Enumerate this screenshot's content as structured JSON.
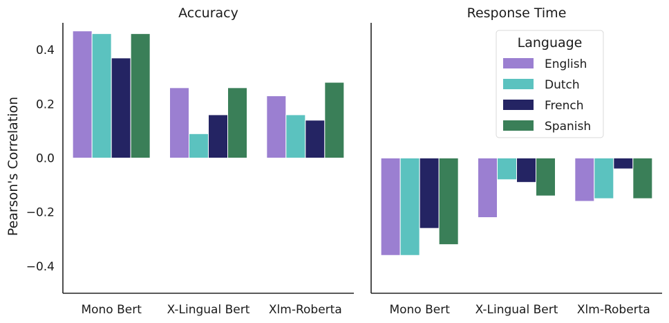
{
  "chart_data": [
    {
      "type": "bar",
      "title": "Accuracy",
      "ylabel": "Pearson's Correlation",
      "xlabel": "",
      "categories": [
        "Mono Bert",
        "X-Lingual Bert",
        "Xlm-Roberta"
      ],
      "ylim": [
        -0.5,
        0.5
      ],
      "yticks": [
        "0.4",
        "0.2",
        "0.0",
        "−0.2",
        "−0.4"
      ],
      "yticks_values": [
        0.4,
        0.2,
        0.0,
        -0.2,
        -0.4
      ],
      "grid": false,
      "series": [
        {
          "name": "English",
          "values": [
            0.47,
            0.26,
            0.23
          ]
        },
        {
          "name": "Dutch",
          "values": [
            0.46,
            0.09,
            0.16
          ]
        },
        {
          "name": "French",
          "values": [
            0.37,
            0.16,
            0.14
          ]
        },
        {
          "name": "Spanish",
          "values": [
            0.46,
            0.26,
            0.28
          ]
        }
      ]
    },
    {
      "type": "bar",
      "title": "Response Time",
      "ylabel": "",
      "xlabel": "",
      "categories": [
        "Mono Bert",
        "X-Lingual Bert",
        "Xlm-Roberta"
      ],
      "ylim": [
        -0.5,
        0.5
      ],
      "shared_y": true,
      "grid": false,
      "legend": {
        "title": "Language",
        "placement": "top-right"
      },
      "series": [
        {
          "name": "English",
          "values": [
            -0.36,
            -0.22,
            -0.16
          ]
        },
        {
          "name": "Dutch",
          "values": [
            -0.36,
            -0.08,
            -0.15
          ]
        },
        {
          "name": "French",
          "values": [
            -0.26,
            -0.09,
            -0.04
          ]
        },
        {
          "name": "Spanish",
          "values": [
            -0.32,
            -0.14,
            -0.15
          ]
        }
      ]
    }
  ],
  "colors": {
    "English": "#9b7fd1",
    "Dutch": "#5bc2bf",
    "French": "#242463",
    "Spanish": "#3a7f58"
  }
}
